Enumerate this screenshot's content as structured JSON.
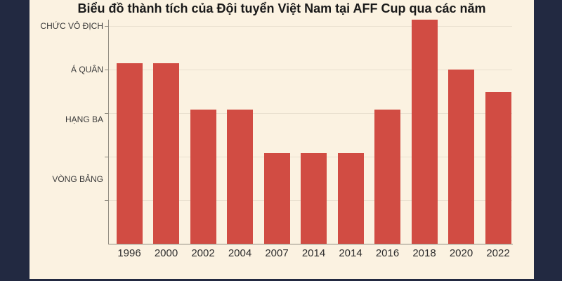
{
  "page": {
    "background_color": "#222941",
    "panel_color": "#fbf2e1"
  },
  "chart_data": {
    "type": "bar",
    "title": "Biểu đồ thành tích của Đội tuyển Việt Nam tại AFF Cup qua các năm",
    "categories": [
      "1996",
      "2000",
      "2002",
      "2004",
      "2007",
      "2014",
      "2014",
      "2016",
      "2018",
      "2020",
      "2022"
    ],
    "values": [
      4.15,
      4.15,
      3.08,
      3.08,
      2.08,
      2.08,
      2.08,
      3.08,
      5.15,
      4.0,
      3.48
    ],
    "xlabel": "",
    "ylabel": "",
    "ylim": [
      0,
      5.5
    ],
    "y_axis": {
      "tick_labels": [
        {
          "text": "CHỨC VÔ ĐỊCH",
          "level": 5.0
        },
        {
          "text": "Á QUÂN",
          "level": 4.0
        },
        {
          "text": "HẠNG BA",
          "level": 2.85
        },
        {
          "text": "VÒNG BẢNG",
          "level": 1.48
        }
      ],
      "gridline_levels": [
        1,
        2,
        3,
        4,
        5
      ]
    },
    "legend": false,
    "grid": true,
    "colors": {
      "bar": "#d14c43",
      "gridline": "#e9e0cf",
      "axis": "#8f8b80",
      "title_text": "#191919",
      "tick_text": "#3a3a3a"
    }
  }
}
